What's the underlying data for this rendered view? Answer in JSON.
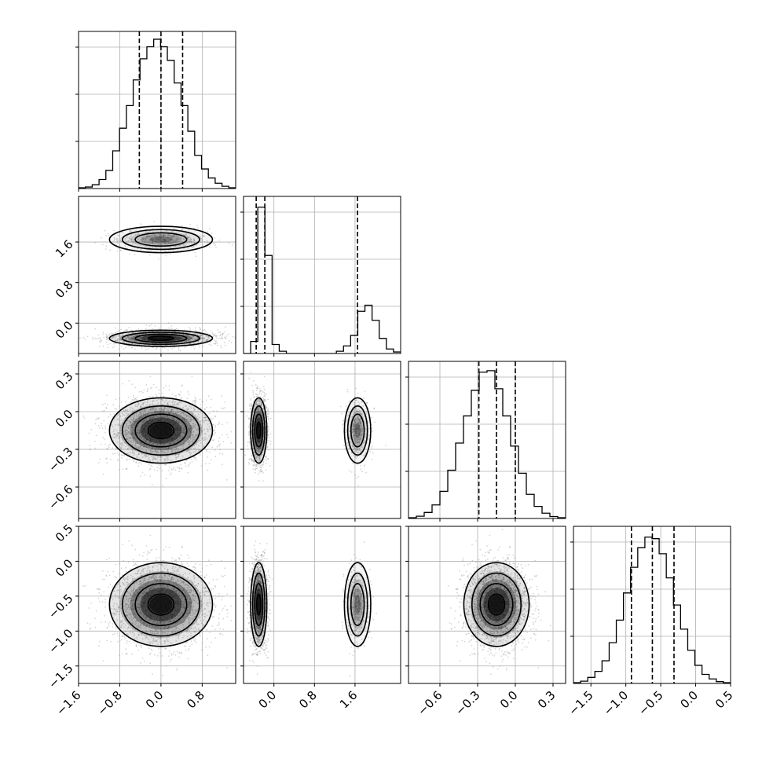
{
  "chart_data": {
    "type": "corner",
    "grid": true,
    "params": [
      {
        "mean": 0.0,
        "std": 0.5,
        "range": [
          -1.6,
          1.45
        ],
        "ticks": [
          -1.6,
          -0.8,
          0.0,
          0.8
        ],
        "tick_labels": [
          "−1.6",
          "−0.8",
          "0.0",
          "0.8"
        ],
        "quantiles": [
          -0.42,
          0.0,
          0.42
        ],
        "hist": [
          0.005,
          0.01,
          0.025,
          0.06,
          0.12,
          0.25,
          0.4,
          0.55,
          0.72,
          0.86,
          0.94,
          0.99,
          0.94,
          0.85,
          0.7,
          0.55,
          0.38,
          0.22,
          0.13,
          0.07,
          0.035,
          0.015,
          0.005
        ]
      },
      {
        "modes": [
          {
            "mean": -0.3,
            "std": 0.08,
            "weight": 0.82
          },
          {
            "mean": 1.65,
            "std": 0.13,
            "weight": 0.18
          }
        ],
        "range": [
          -0.6,
          2.5
        ],
        "ticks": [
          0.0,
          0.8,
          1.6
        ],
        "tick_labels": [
          "0.0",
          "0.8",
          "1.6"
        ],
        "quantiles": [
          -0.35,
          -0.18,
          1.65
        ],
        "hist": [
          0.0,
          0.08,
          0.97,
          0.65,
          0.06,
          0.015,
          0,
          0,
          0,
          0,
          0,
          0,
          0,
          0.015,
          0.05,
          0.12,
          0.28,
          0.32,
          0.22,
          0.1,
          0.03,
          0.01
        ]
      },
      {
        "mean": -0.15,
        "std": 0.13,
        "range": [
          -0.85,
          0.4
        ],
        "ticks": [
          -0.6,
          -0.3,
          0.0,
          0.3
        ],
        "tick_labels": [
          "−0.6",
          "−0.3",
          "0.0",
          "0.3"
        ],
        "quantiles": [
          -0.29,
          -0.15,
          0.0
        ],
        "hist": [
          0.005,
          0.015,
          0.04,
          0.09,
          0.18,
          0.32,
          0.5,
          0.68,
          0.85,
          0.97,
          0.98,
          0.86,
          0.68,
          0.48,
          0.3,
          0.16,
          0.08,
          0.035,
          0.013,
          0.005
        ]
      },
      {
        "mean": -0.62,
        "std": 0.3,
        "range": [
          -1.75,
          0.5
        ],
        "ticks": [
          -1.5,
          -1.0,
          -0.5,
          0.0,
          0.5
        ],
        "tick_labels": [
          "−1.5",
          "−1.0",
          "−0.5",
          "0.0",
          "0.5"
        ],
        "quantiles": [
          -0.92,
          -0.62,
          -0.31
        ],
        "hist": [
          0.005,
          0.015,
          0.04,
          0.08,
          0.15,
          0.27,
          0.42,
          0.6,
          0.77,
          0.9,
          0.97,
          0.96,
          0.86,
          0.7,
          0.52,
          0.36,
          0.22,
          0.12,
          0.06,
          0.03,
          0.012,
          0.005
        ]
      }
    ]
  }
}
